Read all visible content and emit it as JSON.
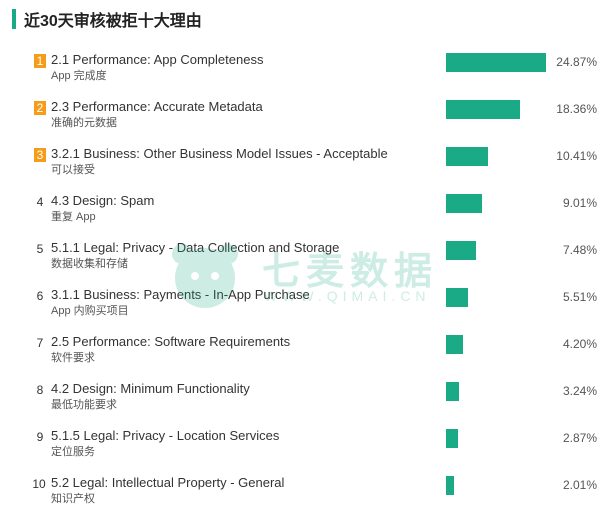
{
  "header": {
    "title": "近30天审核被拒十大理由"
  },
  "watermark": {
    "text": "七麦数据",
    "url_text": "WWW.QIMAI.CN"
  },
  "colors": {
    "bar": "#1aab86",
    "rank_badge": "#f59c1a"
  },
  "chart_data": {
    "type": "bar",
    "orientation": "horizontal",
    "title": "近30天审核被拒十大理由",
    "xlim": [
      0,
      24.87
    ],
    "unit": "%",
    "items": [
      {
        "rank": "1",
        "label": "2.1 Performance: App Completeness",
        "sub": "App 完成度",
        "value": 24.87,
        "display": "24.87%"
      },
      {
        "rank": "2",
        "label": "2.3 Performance: Accurate Metadata",
        "sub": "准确的元数据",
        "value": 18.36,
        "display": "18.36%"
      },
      {
        "rank": "3",
        "label": "3.2.1 Business: Other Business Model Issues - Acceptable",
        "sub": "可以接受",
        "value": 10.41,
        "display": "10.41%"
      },
      {
        "rank": "4",
        "label": "4.3 Design: Spam",
        "sub": "重复 App",
        "value": 9.01,
        "display": "9.01%"
      },
      {
        "rank": "5",
        "label": "5.1.1 Legal: Privacy - Data Collection and Storage",
        "sub": "数据收集和存储",
        "value": 7.48,
        "display": "7.48%"
      },
      {
        "rank": "6",
        "label": "3.1.1 Business: Payments - In-App Purchase",
        "sub": "App 内购买项目",
        "value": 5.51,
        "display": "5.51%"
      },
      {
        "rank": "7",
        "label": "2.5 Performance: Software Requirements",
        "sub": "软件要求",
        "value": 4.2,
        "display": "4.20%"
      },
      {
        "rank": "8",
        "label": "4.2 Design: Minimum Functionality",
        "sub": "最低功能要求",
        "value": 3.24,
        "display": "3.24%"
      },
      {
        "rank": "9",
        "label": "5.1.5 Legal: Privacy - Location Services",
        "sub": "定位服务",
        "value": 2.87,
        "display": "2.87%"
      },
      {
        "rank": "10",
        "label": "5.2 Legal: Intellectual Property - General",
        "sub": "知识产权",
        "value": 2.01,
        "display": "2.01%"
      }
    ]
  }
}
